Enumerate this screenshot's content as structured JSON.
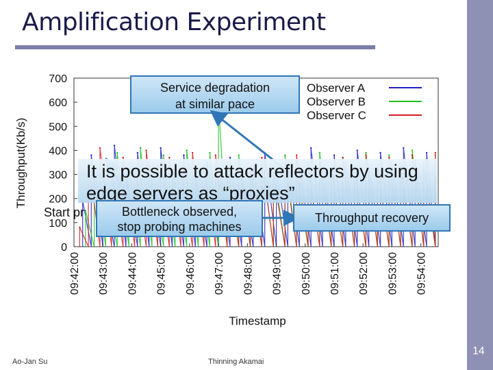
{
  "slide": {
    "title": "Amplification Experiment",
    "footer_left": "Ao-Jan Su",
    "footer_center": "Thinning Akamai",
    "page_number": "14"
  },
  "callouts": {
    "service_line1": "Service degradation",
    "service_line2": "at similar pace",
    "main_line1": "It is possible to attack reflectors by using",
    "main_line2": "edge servers as “proxies”",
    "start": "Start pr",
    "bottleneck_line1": "Bottleneck observed,",
    "bottleneck_line2": "stop probing machines",
    "recovery": "Throughput recovery"
  },
  "chart_data": {
    "type": "line",
    "title": "",
    "xlabel": "Timestamp",
    "ylabel": "Throughput(Kb/s)",
    "ylim": [
      0,
      700
    ],
    "yticks": [
      "0",
      "100",
      "200",
      "300",
      "400",
      "500",
      "600",
      "700"
    ],
    "x_ticks": [
      "09:42:00",
      "09:43:00",
      "09:44:00",
      "09:45:00",
      "09:46:00",
      "09:47:00",
      "09:48:00",
      "09:49:00",
      "09:50:00",
      "09:51:00",
      "09:52:00",
      "09:53:00",
      "09:54:00"
    ],
    "xlim_minutes": [
      0,
      12.6
    ],
    "colors": {
      "Observer A": "#1f1fbf",
      "Observer B": "#1fbf1f",
      "Observer C": "#d01f1f"
    },
    "series": [
      {
        "name": "Observer A",
        "values": [
          [
            0.3,
            190
          ],
          [
            0.6,
            380
          ],
          [
            1.0,
            230
          ],
          [
            1.4,
            420
          ],
          [
            1.8,
            300
          ],
          [
            2.2,
            390
          ],
          [
            2.6,
            340
          ],
          [
            3.0,
            410
          ],
          [
            3.4,
            320
          ],
          [
            3.8,
            380
          ],
          [
            4.2,
            300
          ],
          [
            4.6,
            360
          ],
          [
            5.0,
            330
          ],
          [
            5.4,
            370
          ],
          [
            5.8,
            300
          ],
          [
            6.2,
            340
          ],
          [
            6.6,
            390
          ],
          [
            7.0,
            320
          ],
          [
            7.4,
            360
          ],
          [
            7.8,
            340
          ],
          [
            8.2,
            410
          ],
          [
            8.6,
            330
          ],
          [
            9.0,
            380
          ],
          [
            9.4,
            350
          ],
          [
            9.8,
            400
          ],
          [
            10.2,
            340
          ],
          [
            10.6,
            390
          ],
          [
            11.0,
            350
          ],
          [
            11.4,
            410
          ],
          [
            11.8,
            360
          ],
          [
            12.2,
            390
          ],
          [
            12.5,
            340
          ]
        ]
      },
      {
        "name": "Observer B",
        "values": [
          [
            0.4,
            150
          ],
          [
            0.7,
            340
          ],
          [
            1.1,
            270
          ],
          [
            1.5,
            390
          ],
          [
            1.9,
            330
          ],
          [
            2.3,
            410
          ],
          [
            2.7,
            300
          ],
          [
            3.1,
            380
          ],
          [
            3.5,
            350
          ],
          [
            3.9,
            400
          ],
          [
            4.3,
            330
          ],
          [
            4.7,
            390
          ],
          [
            5.0,
            600
          ],
          [
            5.3,
            350
          ],
          [
            5.7,
            380
          ],
          [
            6.1,
            310
          ],
          [
            6.5,
            360
          ],
          [
            6.9,
            340
          ],
          [
            7.3,
            380
          ],
          [
            7.7,
            300
          ],
          [
            8.1,
            350
          ],
          [
            8.5,
            390
          ],
          [
            8.9,
            330
          ],
          [
            9.3,
            370
          ],
          [
            9.7,
            340
          ],
          [
            10.1,
            390
          ],
          [
            10.5,
            330
          ],
          [
            10.9,
            380
          ],
          [
            11.3,
            350
          ],
          [
            11.7,
            400
          ],
          [
            12.1,
            340
          ],
          [
            12.5,
            380
          ]
        ]
      },
      {
        "name": "Observer C",
        "values": [
          [
            0.2,
            80
          ],
          [
            0.5,
            360
          ],
          [
            0.9,
            410
          ],
          [
            1.3,
            300
          ],
          [
            1.7,
            370
          ],
          [
            2.1,
            320
          ],
          [
            2.5,
            400
          ],
          [
            2.9,
            340
          ],
          [
            3.3,
            370
          ],
          [
            3.7,
            310
          ],
          [
            4.1,
            390
          ],
          [
            4.5,
            340
          ],
          [
            4.9,
            380
          ],
          [
            5.3,
            320
          ],
          [
            5.7,
            360
          ],
          [
            6.1,
            330
          ],
          [
            6.5,
            370
          ],
          [
            6.9,
            300
          ],
          [
            7.3,
            350
          ],
          [
            7.7,
            380
          ],
          [
            8.1,
            330
          ],
          [
            8.5,
            360
          ],
          [
            8.9,
            320
          ],
          [
            9.3,
            370
          ],
          [
            9.7,
            330
          ],
          [
            10.1,
            380
          ],
          [
            10.5,
            340
          ],
          [
            10.9,
            370
          ],
          [
            11.3,
            330
          ],
          [
            11.7,
            380
          ],
          [
            12.1,
            350
          ],
          [
            12.5,
            390
          ]
        ]
      }
    ]
  }
}
